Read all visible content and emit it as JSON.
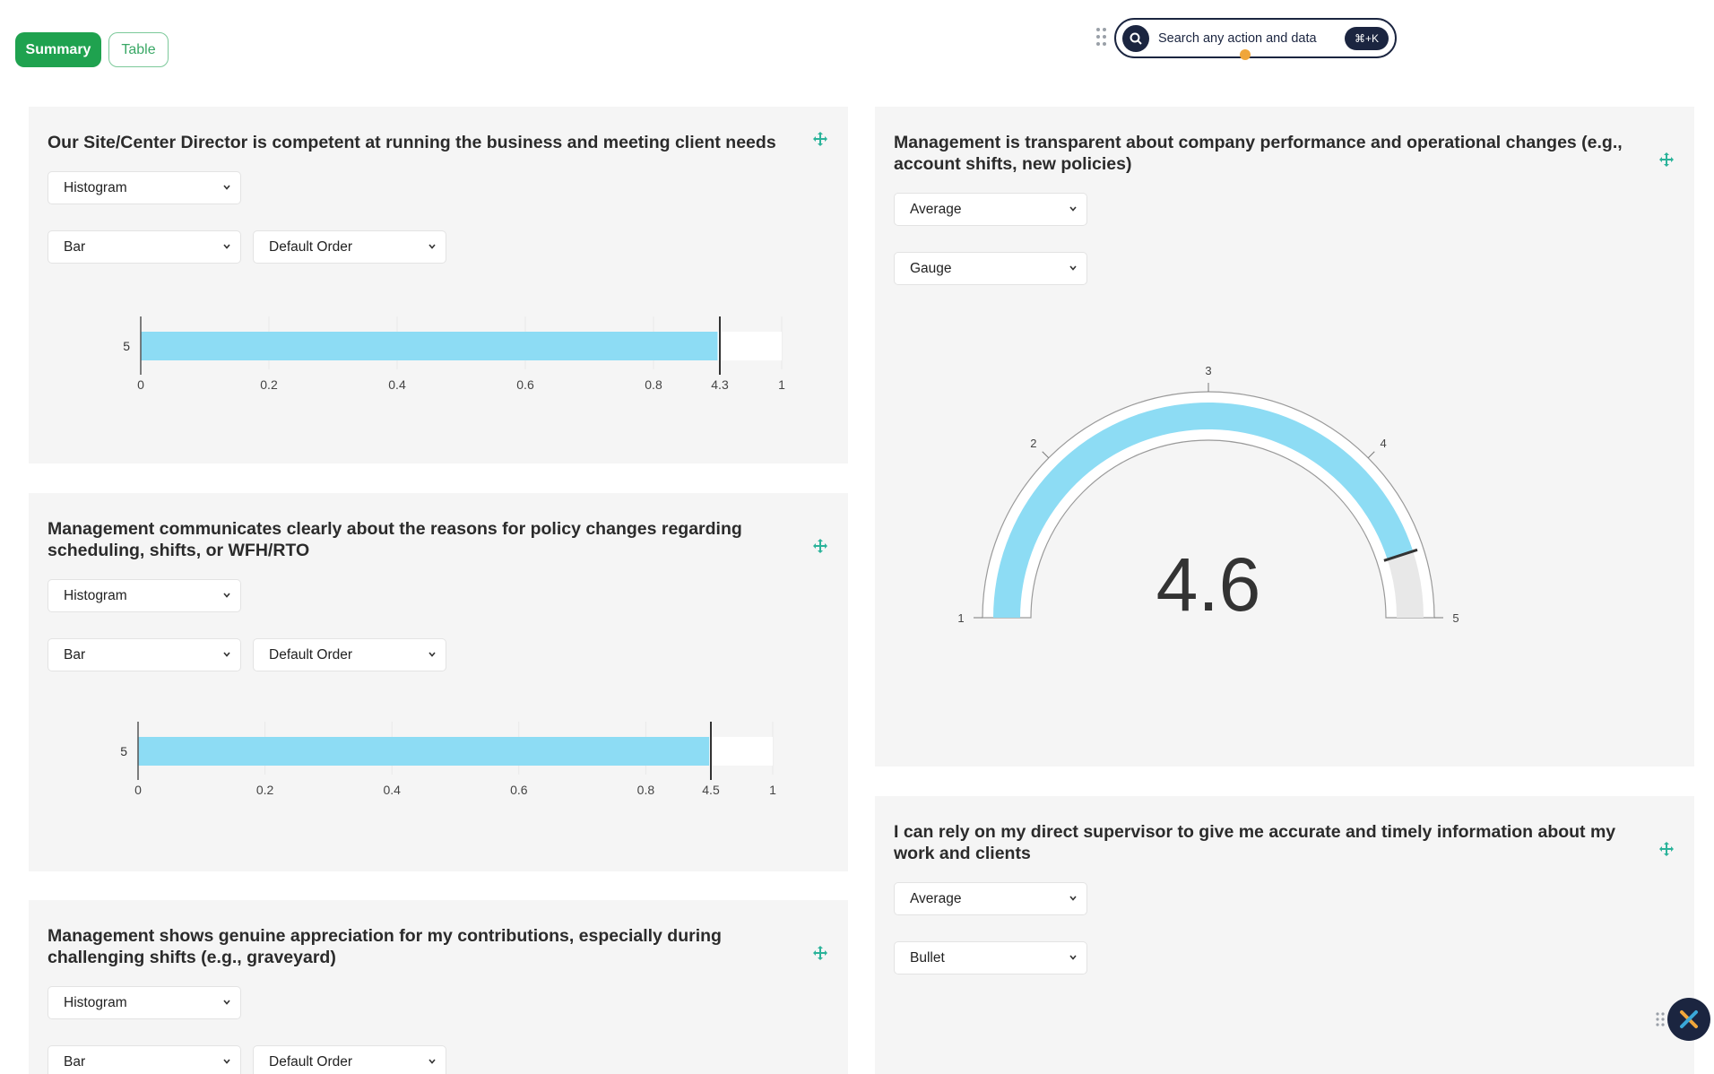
{
  "tabs": {
    "summary": "Summary",
    "table": "Table"
  },
  "search": {
    "placeholder": "Search any action and data",
    "shortcut": "⌘+K"
  },
  "colors": {
    "accent": "#1fa24f",
    "bar": "#8ddcf4",
    "navy": "#1b2540",
    "move": "#2bb39a"
  },
  "cards": [
    {
      "title": "Our Site/Center Director is competent at running the business and meeting client needs",
      "aggregation": "Histogram",
      "chart_type": "Bar",
      "order": "Default Order"
    },
    {
      "title": "Management communicates clearly about the reasons for policy changes regarding scheduling, shifts, or WFH/RTO",
      "aggregation": "Histogram",
      "chart_type": "Bar",
      "order": "Default Order"
    },
    {
      "title": "Management shows genuine appreciation for my contributions, especially during challenging shifts (e.g., graveyard)",
      "aggregation": "Histogram",
      "chart_type": "Bar",
      "order": "Default Order"
    },
    {
      "title": "Management is transparent about company performance and operational changes (e.g., account shifts, new policies)",
      "aggregation": "Average",
      "chart_type": "Gauge"
    },
    {
      "title": "I can rely on my direct supervisor to give me accurate and timely information about my work and clients",
      "aggregation": "Average",
      "chart_type": "Bullet"
    }
  ],
  "chart_data": [
    {
      "type": "bar",
      "orientation": "horizontal",
      "categories": [
        "5"
      ],
      "values": [
        0.9
      ],
      "marker": "4.3",
      "xticks": [
        "0",
        "0.2",
        "0.4",
        "0.6",
        "0.8",
        "4.3",
        "1"
      ],
      "xlim": [
        0,
        1
      ]
    },
    {
      "type": "bar",
      "orientation": "horizontal",
      "categories": [
        "5"
      ],
      "values": [
        0.9
      ],
      "marker": "4.5",
      "xticks": [
        "0",
        "0.2",
        "0.4",
        "0.6",
        "0.8",
        "4.5",
        "1"
      ],
      "xlim": [
        0,
        1
      ]
    },
    {
      "type": "gauge",
      "value": 4.6,
      "value_label": "4.6",
      "range": [
        1,
        5
      ],
      "ticks": [
        "1",
        "2",
        "3",
        "4",
        "5"
      ]
    }
  ]
}
